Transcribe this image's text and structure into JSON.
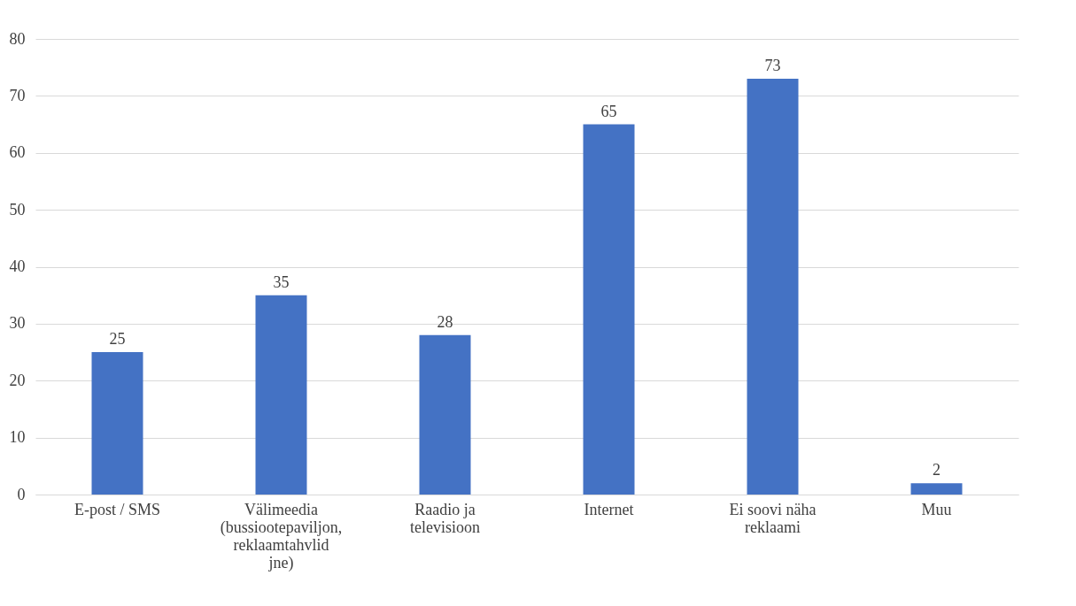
{
  "chart_data": {
    "type": "bar",
    "categories": [
      "E-post / SMS",
      "Välimeedia (bussiootepaviljon, reklaamtahvlid jne)",
      "Raadio ja televisioon",
      "Internet",
      "Ei soovi näha reklaami",
      "Muu"
    ],
    "values": [
      25,
      35,
      28,
      65,
      73,
      2
    ],
    "color": "#4472c4",
    "ylim": [
      0,
      80
    ],
    "yticks": [
      0,
      10,
      20,
      30,
      40,
      50,
      60,
      70,
      80
    ],
    "grid": "y",
    "data_labels": true
  }
}
